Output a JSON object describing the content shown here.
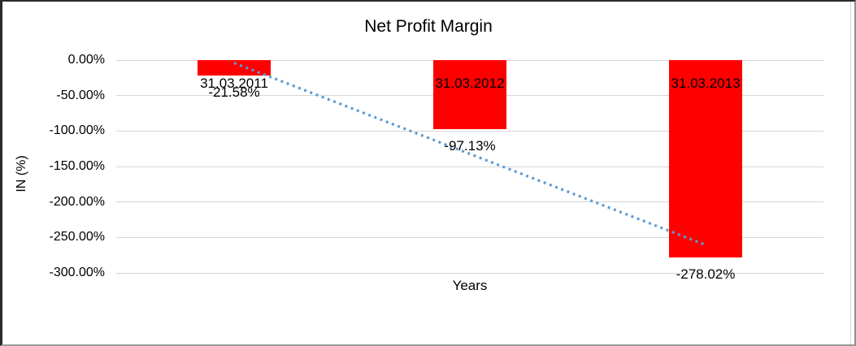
{
  "chart_data": {
    "type": "bar",
    "title": "Net Profit Margin",
    "xlabel": "Years",
    "ylabel": "IN (%)",
    "categories": [
      "31.03.2011",
      "31.03.2012",
      "31.03.2013"
    ],
    "series": [
      {
        "name": "Net Profit Margin",
        "values": [
          -21.58,
          -97.13,
          -278.02
        ]
      }
    ],
    "data_labels": [
      "-21.58%",
      "-97.13%",
      "-278.02%"
    ],
    "ylim": [
      -300,
      0
    ],
    "ytick_step": 50,
    "ytick_labels": [
      "0.00%",
      "-50.00%",
      "-100.00%",
      "-150.00%",
      "-200.00%",
      "-250.00%",
      "-300.00%"
    ],
    "grid": true,
    "legend": "none",
    "bar_color": "#ff0000",
    "gridline_color": "#d6d6d6",
    "text_color": "#000000",
    "background_color": "#ffffff",
    "trendline": {
      "type": "linear",
      "style": "dotted",
      "color": "#5b9bd5"
    }
  }
}
